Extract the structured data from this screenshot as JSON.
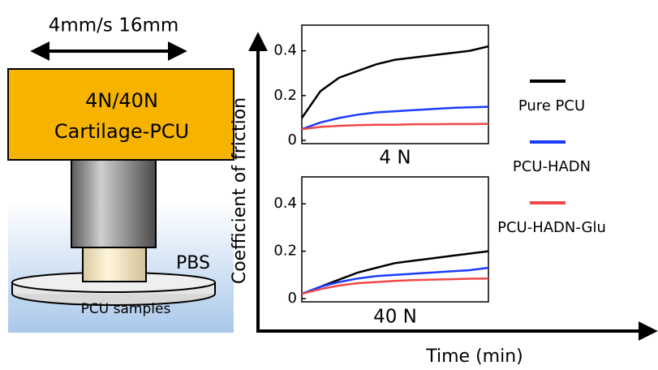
{
  "diagram": {
    "speed_label": "4mm/s 16mm",
    "load_label": "4N/40N",
    "pair_label": "Cartilage-PCU",
    "medium_label": "PBS",
    "sample_label": "PCU samples"
  },
  "axes": {
    "y_label": "Coefficient of friction",
    "x_label": "Time (min)"
  },
  "chart_data": [
    {
      "type": "line",
      "title": "4 N",
      "ylim": [
        0,
        0.5
      ],
      "yticks": [
        0,
        0.2,
        0.4
      ],
      "series": [
        {
          "name": "Pure PCU",
          "color": "#000000",
          "values": [
            0.1,
            0.22,
            0.28,
            0.31,
            0.34,
            0.36,
            0.37,
            0.38,
            0.39,
            0.4,
            0.42
          ]
        },
        {
          "name": "PCU-HADN",
          "color": "#1a3cff",
          "values": [
            0.05,
            0.08,
            0.1,
            0.115,
            0.125,
            0.13,
            0.135,
            0.14,
            0.145,
            0.148,
            0.15
          ]
        },
        {
          "name": "PCU-HADN-Glu",
          "color": "#f04848",
          "values": [
            0.05,
            0.06,
            0.065,
            0.068,
            0.07,
            0.07,
            0.072,
            0.072,
            0.073,
            0.073,
            0.074
          ]
        }
      ]
    },
    {
      "type": "line",
      "title": "40 N",
      "ylim": [
        0,
        0.5
      ],
      "yticks": [
        0,
        0.2,
        0.4
      ],
      "series": [
        {
          "color": "#000000",
          "values": [
            0.02,
            0.05,
            0.08,
            0.11,
            0.13,
            0.15,
            0.16,
            0.17,
            0.18,
            0.19,
            0.2
          ]
        },
        {
          "color": "#1a3cff",
          "values": [
            0.02,
            0.05,
            0.07,
            0.085,
            0.095,
            0.1,
            0.105,
            0.11,
            0.115,
            0.12,
            0.13
          ]
        },
        {
          "color": "#f04848",
          "values": [
            0.02,
            0.04,
            0.055,
            0.065,
            0.07,
            0.075,
            0.078,
            0.08,
            0.082,
            0.084,
            0.085
          ]
        }
      ]
    }
  ]
}
